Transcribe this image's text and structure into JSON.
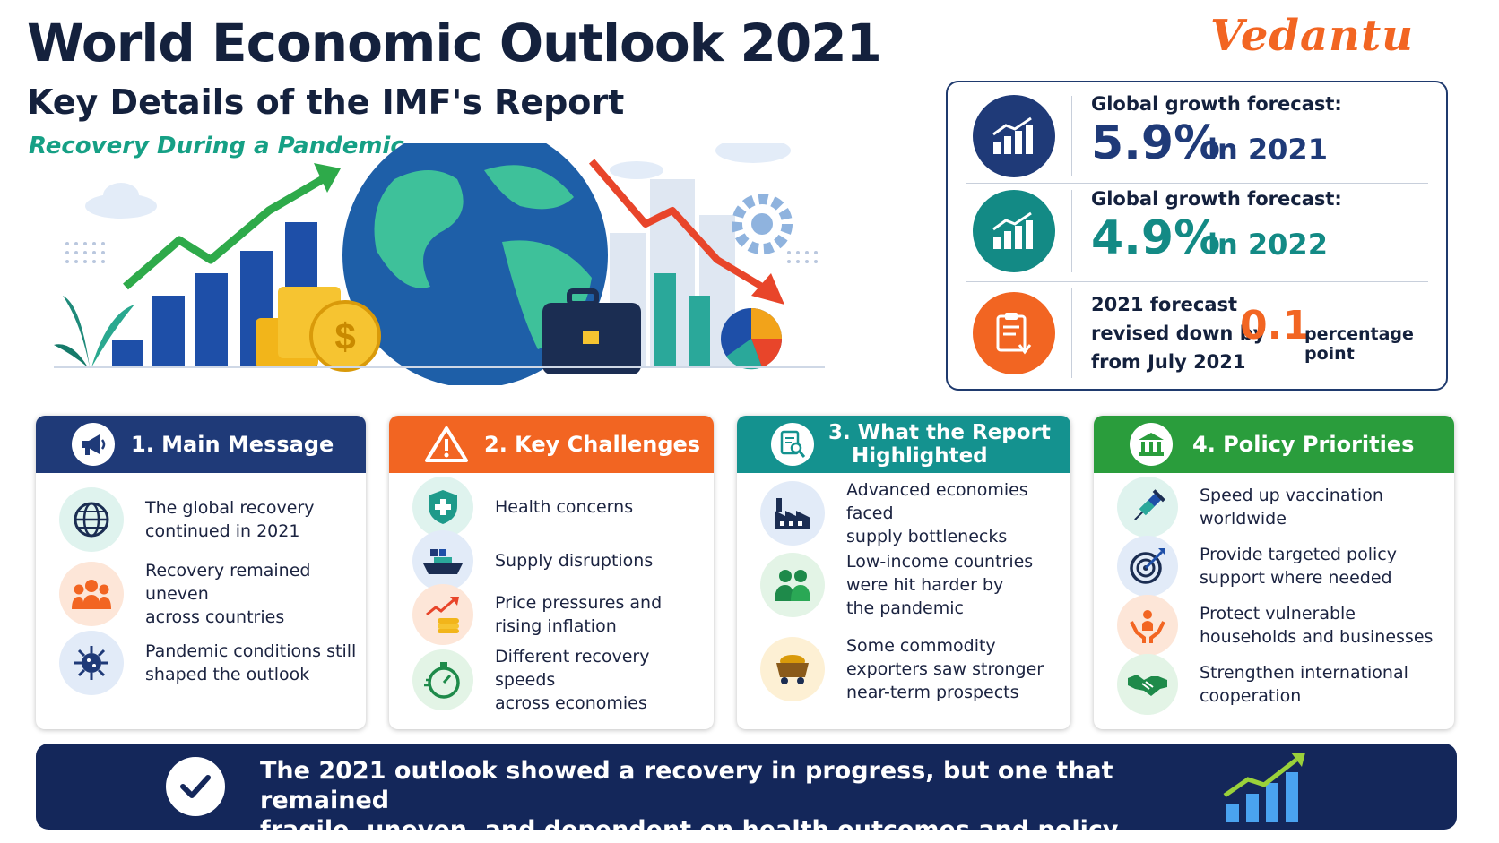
{
  "header": {
    "title": "World Economic Outlook 2021",
    "subtitle": "Key Details of the IMF's Report",
    "tagline": "Recovery During a Pandemic",
    "logo": "Vedantu"
  },
  "kpis": {
    "growth_2021": {
      "label": "Global growth forecast:",
      "value": "5.9%",
      "year": "in 2021",
      "icon": "growth-chart-icon",
      "color": "#1f3a78"
    },
    "growth_2022": {
      "label": "Global growth forecast:",
      "value": "4.9%",
      "year": "in 2022",
      "icon": "growth-chart-icon",
      "color": "#138a85"
    },
    "revision": {
      "line1": "2021 forecast",
      "line2": "revised down by",
      "value": "0.1",
      "unit": "percentage point",
      "line3": "from July 2021",
      "icon": "clipboard-down-icon",
      "color": "#f26522"
    }
  },
  "panels": [
    {
      "title_line1": "1. Main Message",
      "title_line2": "",
      "icon": "megaphone-icon",
      "color": "#1f3a78",
      "items": [
        {
          "l1": "The global recovery",
          "l2": "continued in 2021",
          "l3": "",
          "icon": "globe-icon"
        },
        {
          "l1": "Recovery remained uneven",
          "l2": "across countries",
          "l3": "",
          "icon": "people-icon"
        },
        {
          "l1": "Pandemic conditions still",
          "l2": "shaped the outlook",
          "l3": "",
          "icon": "virus-icon"
        }
      ]
    },
    {
      "title_line1": "2. Key Challenges",
      "title_line2": "",
      "icon": "warning-icon",
      "color": "#f26522",
      "items": [
        {
          "l1": "Health concerns",
          "l2": "",
          "l3": "",
          "icon": "health-shield-icon"
        },
        {
          "l1": "Supply disruptions",
          "l2": "",
          "l3": "",
          "icon": "cargo-ship-icon"
        },
        {
          "l1": "Price pressures and",
          "l2": "rising inflation",
          "l3": "",
          "icon": "rising-coins-icon"
        },
        {
          "l1": "Different recovery speeds",
          "l2": "across economies",
          "l3": "",
          "icon": "stopwatch-icon"
        }
      ]
    },
    {
      "title_line1": "3. What the Report",
      "title_line2": "Highlighted",
      "icon": "report-search-icon",
      "color": "#14928f",
      "items": [
        {
          "l1": "Advanced economies faced",
          "l2": "supply bottlenecks",
          "l3": "",
          "icon": "factory-icon"
        },
        {
          "l1": "Low-income countries",
          "l2": "were hit harder by",
          "l3": "the pandemic",
          "icon": "group-icon"
        },
        {
          "l1": "Some commodity",
          "l2": "exporters saw stronger",
          "l3": "near-term prospects",
          "icon": "mine-cart-icon"
        }
      ]
    },
    {
      "title_line1": "4. Policy Priorities",
      "title_line2": "",
      "icon": "bank-icon",
      "color": "#2a9d3c",
      "items": [
        {
          "l1": "Speed up vaccination",
          "l2": "worldwide",
          "l3": "",
          "icon": "syringe-icon"
        },
        {
          "l1": "Provide targeted policy",
          "l2": "support where needed",
          "l3": "",
          "icon": "target-icon"
        },
        {
          "l1": "Protect vulnerable",
          "l2": "households and businesses",
          "l3": "",
          "icon": "protect-hands-icon"
        },
        {
          "l1": "Strengthen international",
          "l2": "cooperation",
          "l3": "",
          "icon": "handshake-icon"
        }
      ]
    }
  ],
  "footer": {
    "line1": "The 2021 outlook showed a recovery in progress, but one that remained",
    "line2": "fragile, uneven, and dependent on health outcomes and policy support.",
    "icon": "check-icon"
  }
}
